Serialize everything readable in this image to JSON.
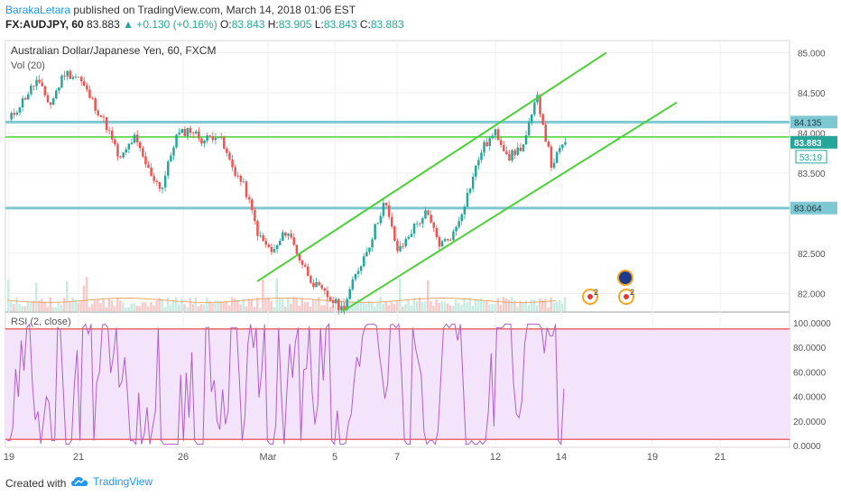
{
  "header": {
    "author": "BarakaLetara",
    "published_text": " published on TradingView.com, March 14, 2018 01:06 EST",
    "symbol": "FX:AUDJPY, 60",
    "last": "83.883",
    "change": "▲ +0.130 (+0.16%)",
    "o_label": "O:",
    "o_value": "83.843",
    "h_label": "H:",
    "h_value": "83.905",
    "l_label": "L:",
    "l_value": "83.843",
    "c_label": "C:",
    "c_value": "83.883"
  },
  "footer": {
    "created_with": "Created with",
    "brand": "TradingView"
  },
  "colors": {
    "up": "#26a69a",
    "down": "#ef5350",
    "channel": "#4cd137",
    "hline": "#7ec8d3",
    "rsi_line": "#b05fc8",
    "rsi_band": "#f3e3fb",
    "rsi_bound": "#e53935",
    "label_box": "#7ec8d3",
    "price_box": "#26a69a"
  },
  "chart_data": {
    "type": "candlestick",
    "title": "Australian Dollar/Japanese Yen, 60, FXCM",
    "volume_label": "Vol (20)",
    "rsi_label": "RSI (2, close)",
    "x_ticks": [
      "19",
      "21",
      "26",
      "Mar",
      "5",
      "7",
      "12",
      "14",
      "19",
      "21"
    ],
    "y_ticks": [
      "85.000",
      "84.500",
      "84.000",
      "83.500",
      "82.500",
      "82.000"
    ],
    "ylim": [
      81.78,
      85.15
    ],
    "horizontal_lines": [
      {
        "value": 84.135,
        "label": "84.135"
      },
      {
        "value": 83.064,
        "label": "83.064"
      }
    ],
    "green_horizontal": 83.95,
    "current_price": {
      "value": 83.883,
      "label": "83.883",
      "countdown": "53:19"
    },
    "channel_lines": [
      {
        "from": {
          "t": 0.0,
          "v": 82.15
        },
        "to": {
          "t": 1.0,
          "v": 85.0
        }
      },
      {
        "from": {
          "t": 0.0,
          "v": 81.78
        },
        "to": {
          "t": 1.0,
          "v": 84.38
        }
      }
    ],
    "price_path": [
      {
        "x": "19",
        "v": 84.15
      },
      {
        "v": 84.4
      },
      {
        "v": 84.65
      },
      {
        "v": 84.35
      },
      {
        "x": "21",
        "v": 84.75
      },
      {
        "v": 84.7
      },
      {
        "v": 84.4
      },
      {
        "v": 84.1
      },
      {
        "v": 83.65
      },
      {
        "v": 83.95
      },
      {
        "v": 83.55
      },
      {
        "v": 83.3
      },
      {
        "x": "26",
        "v": 83.95
      },
      {
        "v": 84.05
      },
      {
        "v": 83.9
      },
      {
        "v": 84.0
      },
      {
        "v": 83.6
      },
      {
        "v": 83.3
      },
      {
        "v": 82.7
      },
      {
        "v": 82.5
      },
      {
        "x": "Mar",
        "v": 82.8
      },
      {
        "v": 82.4
      },
      {
        "v": 82.1
      },
      {
        "v": 81.95
      },
      {
        "x": "5",
        "v": 81.8
      },
      {
        "v": 82.25
      },
      {
        "v": 82.65
      },
      {
        "v": 83.15
      },
      {
        "x": "7",
        "v": 82.5
      },
      {
        "v": 82.8
      },
      {
        "v": 83.0
      },
      {
        "v": 82.6
      },
      {
        "v": 82.75
      },
      {
        "v": 83.25
      },
      {
        "v": 83.8
      },
      {
        "x": "12",
        "v": 84.0
      },
      {
        "v": 83.7
      },
      {
        "v": 83.85
      },
      {
        "v": 84.45
      },
      {
        "x": "14",
        "v": 83.6
      },
      {
        "v": 83.883
      }
    ],
    "rsi_ticks": [
      "100.0000",
      "80.0000",
      "60.0000",
      "40.0000",
      "20.0000",
      "0.0000"
    ],
    "rsi_ylim": [
      0,
      100
    ],
    "rsi_bounds": [
      95,
      5
    ],
    "events": [
      {
        "label": "2",
        "type": "event"
      },
      {
        "label": "2",
        "type": "event"
      }
    ]
  }
}
